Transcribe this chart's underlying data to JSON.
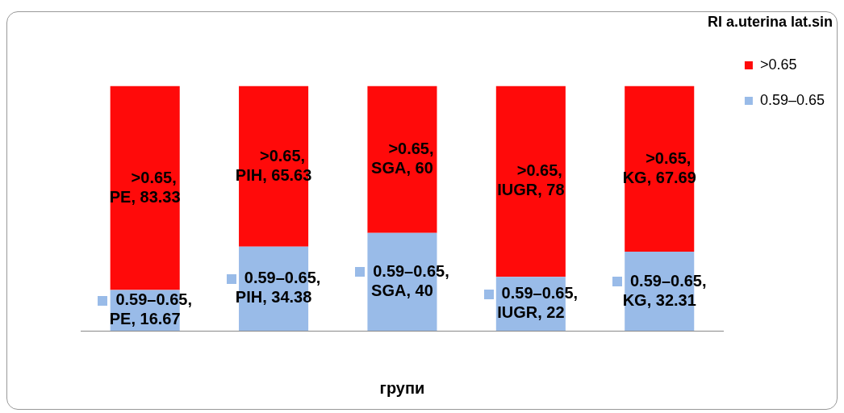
{
  "chart_data": {
    "type": "bar",
    "stacked": true,
    "xlabel": "групи",
    "legend_title": "RI a.uterina lat.sin",
    "legend": "top right",
    "tick_labels": false,
    "grid": false,
    "categories": [
      null,
      null,
      null,
      null,
      null
    ],
    "series": [
      {
        "name": "0.59–0.65",
        "color": "#99bbe8",
        "values": [
          16.67,
          34.38,
          40,
          22,
          32.31
        ],
        "value_labels": [
          "0.59–0.65, PE, 16.67",
          "0.59–0.65, PIH, 34.38",
          "0.59–0.65, SGA, 40",
          "0.59–0.65, IUGR, 22",
          "0.59–0.65, KG, 32.31"
        ]
      },
      {
        "name": ">0.65",
        "color": "#ff0a0a",
        "values": [
          83.33,
          65.63,
          60,
          78,
          67.69
        ],
        "value_labels": [
          ">0.65, PE, 83.33",
          ">0.65, PIH, 65.63",
          ">0.65, SGA, 60",
          ">0.65, IUGR, 78",
          ">0.65, KG, 67.69"
        ]
      }
    ]
  }
}
